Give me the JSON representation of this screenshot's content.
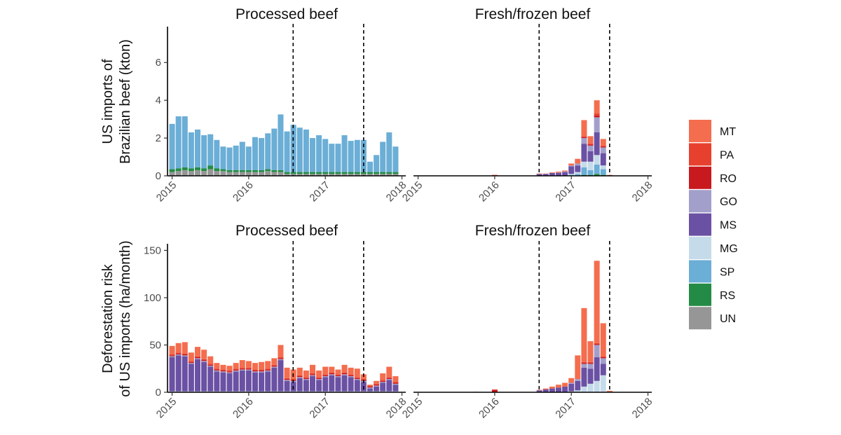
{
  "chart_data": [
    {
      "type": "bar",
      "stacked": true,
      "panel_title": "Processed beef",
      "ylabel": [
        "US imports of",
        "Brazilian beef (kton)"
      ],
      "yticks": [
        0,
        2,
        4,
        6
      ],
      "ylim": [
        0,
        7.9
      ],
      "xticks": [
        "2015",
        "2016",
        "2017",
        "2018"
      ],
      "xlim": [
        2014.94,
        2018.05
      ],
      "vlines": [
        2016.58,
        2017.5
      ],
      "stack_order": [
        "UN",
        "RS",
        "SP"
      ],
      "months": [
        "2015-01",
        "2015-02",
        "2015-03",
        "2015-04",
        "2015-05",
        "2015-06",
        "2015-07",
        "2015-08",
        "2015-09",
        "2015-10",
        "2015-11",
        "2015-12",
        "2016-01",
        "2016-02",
        "2016-03",
        "2016-04",
        "2016-05",
        "2016-06",
        "2016-07",
        "2016-08",
        "2016-09",
        "2016-10",
        "2016-11",
        "2016-12",
        "2017-01",
        "2017-02",
        "2017-03",
        "2017-04",
        "2017-05",
        "2017-06",
        "2017-07",
        "2017-08",
        "2017-09",
        "2017-10",
        "2017-11",
        "2017-12"
      ],
      "series": [
        {
          "name": "UN",
          "values": [
            0.2,
            0.25,
            0.3,
            0.25,
            0.3,
            0.25,
            0.35,
            0.25,
            0.25,
            0.2,
            0.2,
            0.2,
            0.2,
            0.2,
            0.2,
            0.25,
            0.2,
            0.2,
            0.1,
            0.1,
            0.1,
            0.1,
            0.1,
            0.1,
            0.1,
            0.1,
            0.1,
            0.1,
            0.1,
            0.1,
            0.1,
            0.1,
            0.1,
            0.1,
            0.1,
            0.1
          ]
        },
        {
          "name": "RS",
          "values": [
            0.15,
            0.15,
            0.15,
            0.15,
            0.15,
            0.15,
            0.2,
            0.15,
            0.1,
            0.1,
            0.1,
            0.1,
            0.1,
            0.1,
            0.1,
            0.1,
            0.1,
            0.1,
            0.1,
            0.1,
            0.1,
            0.1,
            0.1,
            0.1,
            0.1,
            0.1,
            0.1,
            0.1,
            0.1,
            0.1,
            0.1,
            0.1,
            0.1,
            0.1,
            0.1,
            0.1
          ]
        },
        {
          "name": "SP",
          "values": [
            2.4,
            2.75,
            2.7,
            1.9,
            2.0,
            1.75,
            1.65,
            1.5,
            1.2,
            1.2,
            1.3,
            1.5,
            1.25,
            1.75,
            1.7,
            1.9,
            2.2,
            2.95,
            2.15,
            2.5,
            2.35,
            2.25,
            1.8,
            1.95,
            1.75,
            1.5,
            1.5,
            1.95,
            1.65,
            1.7,
            1.7,
            0.55,
            0.9,
            1.6,
            2.1,
            1.35
          ]
        }
      ]
    },
    {
      "type": "bar",
      "stacked": true,
      "panel_title": "Fresh/frozen beef",
      "yticks": [
        0,
        2,
        4,
        6
      ],
      "ylim": [
        0,
        7.9
      ],
      "xticks": [
        "2015",
        "2016",
        "2017",
        "2018"
      ],
      "xlim": [
        2014.94,
        2018.05
      ],
      "vlines": [
        2016.58,
        2017.5
      ],
      "stack_order": [
        "UN",
        "RS",
        "SP",
        "MG",
        "MS",
        "GO",
        "RO",
        "PA",
        "MT"
      ],
      "months": [
        "2015-10",
        "2016-01",
        "2016-08",
        "2016-09",
        "2016-10",
        "2016-11",
        "2016-12",
        "2017-01",
        "2017-02",
        "2017-03",
        "2017-04",
        "2017-05",
        "2017-06",
        "2017-07"
      ],
      "series": [
        {
          "name": "UN",
          "values": [
            0,
            0,
            0,
            0,
            0,
            0,
            0,
            0,
            0,
            0,
            0,
            0,
            0,
            0
          ]
        },
        {
          "name": "RS",
          "values": [
            0,
            0,
            0,
            0,
            0,
            0,
            0,
            0,
            0,
            0.05,
            0.05,
            0.1,
            0.05,
            0
          ]
        },
        {
          "name": "SP",
          "values": [
            0,
            0,
            0,
            0,
            0,
            0,
            0,
            0.05,
            0.1,
            0.4,
            0.25,
            0.5,
            0.3,
            0
          ]
        },
        {
          "name": "MG",
          "values": [
            0,
            0,
            0,
            0,
            0,
            0,
            0,
            0.05,
            0.1,
            0.3,
            0.45,
            0.5,
            0.2,
            0
          ]
        },
        {
          "name": "MS",
          "values": [
            0,
            0,
            0.1,
            0.1,
            0.15,
            0.15,
            0.2,
            0.4,
            0.35,
            0.95,
            0.55,
            1.2,
            0.65,
            0.03
          ]
        },
        {
          "name": "GO",
          "values": [
            0,
            0,
            0,
            0,
            0,
            0.02,
            0.03,
            0.05,
            0.1,
            0.3,
            0.3,
            0.8,
            0.3,
            0
          ]
        },
        {
          "name": "RO",
          "values": [
            0,
            0.03,
            0,
            0,
            0,
            0,
            0,
            0,
            0,
            0.05,
            0.05,
            0.1,
            0.05,
            0
          ]
        },
        {
          "name": "PA",
          "values": [
            0,
            0.02,
            0,
            0,
            0,
            0,
            0,
            0,
            0,
            0.05,
            0.05,
            0.1,
            0.05,
            0
          ]
        },
        {
          "name": "MT",
          "values": [
            0.02,
            0,
            0.02,
            0.02,
            0.03,
            0.05,
            0.05,
            0.1,
            0.25,
            0.85,
            0.4,
            0.7,
            0.35,
            0.02
          ]
        }
      ]
    },
    {
      "type": "bar",
      "stacked": true,
      "panel_title": "Processed beef",
      "ylabel": [
        "Deforestation risk",
        "of US imports (ha/month)"
      ],
      "yticks": [
        0,
        50,
        100,
        150
      ],
      "ylim": [
        0,
        157
      ],
      "xticks": [
        "2015",
        "2016",
        "2017",
        "2018"
      ],
      "xlim": [
        2014.94,
        2018.05
      ],
      "vlines": [
        2016.58,
        2017.5
      ],
      "stack_order": [
        "UN",
        "RS",
        "SP",
        "MG",
        "MS",
        "GO",
        "RO",
        "PA",
        "MT"
      ],
      "months": [
        "2015-01",
        "2015-02",
        "2015-03",
        "2015-04",
        "2015-05",
        "2015-06",
        "2015-07",
        "2015-08",
        "2015-09",
        "2015-10",
        "2015-11",
        "2015-12",
        "2016-01",
        "2016-02",
        "2016-03",
        "2016-04",
        "2016-05",
        "2016-06",
        "2016-07",
        "2016-08",
        "2016-09",
        "2016-10",
        "2016-11",
        "2016-12",
        "2017-01",
        "2017-02",
        "2017-03",
        "2017-04",
        "2017-05",
        "2017-06",
        "2017-07",
        "2017-08",
        "2017-09",
        "2017-10",
        "2017-11",
        "2017-12"
      ],
      "series": [
        {
          "name": "UN",
          "values": [
            0,
            0,
            0,
            0,
            0,
            0,
            0,
            0,
            0,
            0,
            0,
            0,
            0,
            0,
            0,
            0,
            0,
            0,
            0,
            0,
            0,
            0,
            0,
            0,
            0,
            0,
            0,
            0,
            0,
            0,
            0,
            0,
            0,
            0,
            0,
            0
          ]
        },
        {
          "name": "RS",
          "values": [
            0,
            0,
            0,
            0,
            0,
            0,
            0,
            0,
            0,
            0,
            0,
            0,
            0,
            0,
            0,
            0,
            0,
            0,
            0,
            0,
            0,
            0,
            0,
            0,
            0,
            0,
            0,
            0,
            0,
            0,
            0,
            0,
            0,
            0,
            0,
            0
          ]
        },
        {
          "name": "SP",
          "values": [
            0.5,
            0.5,
            0.5,
            0.5,
            0.5,
            0.5,
            0.5,
            0.5,
            0.5,
            0.5,
            0.5,
            0.5,
            0.5,
            0.5,
            0.5,
            0.5,
            0.5,
            0.5,
            0.5,
            0.5,
            0.5,
            0.5,
            0.5,
            0.5,
            0.5,
            0.5,
            0.5,
            0.5,
            0.5,
            0.5,
            0.5,
            0.5,
            0.5,
            0.5,
            0.5,
            0.5
          ]
        },
        {
          "name": "MG",
          "values": [
            0.5,
            0.5,
            0.5,
            0.5,
            0.5,
            0.5,
            0.5,
            0.5,
            0.5,
            0.5,
            0.5,
            0.5,
            0.5,
            0.5,
            0.5,
            0.5,
            0.5,
            0.5,
            0.5,
            0.5,
            0.5,
            0.5,
            0.5,
            0.5,
            0.5,
            0.5,
            0.5,
            0.5,
            0.5,
            0.5,
            0.5,
            0.5,
            0.5,
            0.5,
            0.5,
            0.5
          ]
        },
        {
          "name": "MS",
          "values": [
            36,
            38,
            37,
            29,
            34,
            31,
            26,
            21,
            20,
            19,
            21,
            22,
            22,
            20,
            20,
            21,
            25,
            33,
            11,
            10,
            14,
            12,
            16,
            12,
            15,
            17,
            15,
            17,
            15,
            12,
            10,
            3,
            5,
            9,
            12,
            7
          ]
        },
        {
          "name": "GO",
          "values": [
            1,
            1,
            1,
            1,
            1,
            1,
            1,
            1,
            1,
            1,
            1,
            1,
            1,
            1,
            1,
            1,
            1,
            1,
            1,
            1,
            1,
            1,
            1,
            1,
            1,
            1,
            1,
            1,
            1,
            1,
            1,
            1,
            1,
            1,
            1,
            1
          ]
        },
        {
          "name": "RO",
          "values": [
            1,
            1,
            1,
            1,
            1,
            1,
            1,
            1,
            1,
            1,
            1,
            1,
            1,
            1,
            1,
            1,
            1,
            1,
            1,
            1,
            1,
            1,
            1,
            1,
            1,
            1,
            1,
            1,
            1,
            1,
            1,
            1,
            1,
            1,
            1,
            1
          ]
        },
        {
          "name": "PA",
          "values": [
            1,
            1,
            1,
            1,
            1,
            1,
            1,
            1,
            1,
            1,
            1,
            1,
            1,
            1,
            1,
            1,
            1,
            1,
            1,
            1,
            1,
            1,
            1,
            1,
            1,
            1,
            1,
            1,
            1,
            1,
            1,
            1,
            1,
            1,
            1,
            1
          ]
        },
        {
          "name": "MT",
          "values": [
            9,
            10,
            12,
            9,
            10,
            10,
            8,
            6,
            5,
            5,
            6,
            8,
            7,
            7,
            8,
            8,
            7,
            13,
            11,
            10,
            8,
            7,
            9,
            7,
            8,
            6,
            5,
            8,
            7,
            9,
            5,
            1,
            3,
            7,
            11,
            6
          ]
        }
      ]
    },
    {
      "type": "bar",
      "stacked": true,
      "panel_title": "Fresh/frozen beef",
      "yticks": [
        0,
        50,
        100,
        150
      ],
      "ylim": [
        0,
        157
      ],
      "xticks": [
        "2015",
        "2016",
        "2017",
        "2018"
      ],
      "xlim": [
        2014.94,
        2018.05
      ],
      "vlines": [
        2016.58,
        2017.5
      ],
      "stack_order": [
        "UN",
        "RS",
        "SP",
        "MG",
        "MS",
        "GO",
        "RO",
        "PA",
        "MT"
      ],
      "months": [
        "2015-10",
        "2016-01",
        "2016-08",
        "2016-09",
        "2016-10",
        "2016-11",
        "2016-12",
        "2017-01",
        "2017-02",
        "2017-03",
        "2017-04",
        "2017-05",
        "2017-06",
        "2017-07"
      ],
      "series": [
        {
          "name": "UN",
          "values": [
            0,
            0,
            0,
            0,
            0,
            0,
            0,
            0,
            0,
            0,
            0,
            0,
            0,
            0
          ]
        },
        {
          "name": "RS",
          "values": [
            0,
            0,
            0,
            0,
            0,
            0,
            0,
            0,
            0,
            0,
            0,
            0,
            0,
            0
          ]
        },
        {
          "name": "SP",
          "values": [
            0,
            0,
            0,
            0,
            0,
            0,
            0,
            0,
            0,
            0,
            0,
            0,
            0,
            0
          ]
        },
        {
          "name": "MG",
          "values": [
            0,
            0,
            0,
            0,
            0,
            0,
            0,
            1,
            2,
            6,
            9,
            12,
            18,
            0
          ]
        },
        {
          "name": "MS",
          "values": [
            0,
            0,
            2,
            3,
            4,
            5,
            6,
            8,
            10,
            20,
            16,
            25,
            12,
            0.5
          ]
        },
        {
          "name": "GO",
          "values": [
            0,
            0,
            0,
            0,
            0,
            0,
            0,
            1,
            2,
            4,
            5,
            13,
            6,
            0
          ]
        },
        {
          "name": "RO",
          "values": [
            0,
            2.5,
            0,
            0,
            0,
            0,
            0,
            0,
            0,
            1,
            1,
            1,
            1,
            0
          ]
        },
        {
          "name": "PA",
          "values": [
            0,
            0.5,
            0,
            0,
            0,
            0,
            0,
            0,
            0,
            1,
            1,
            1,
            1,
            0
          ]
        },
        {
          "name": "MT",
          "values": [
            0.5,
            0,
            0.5,
            1,
            2,
            3,
            4,
            5,
            25,
            57,
            22,
            87,
            35,
            1
          ]
        }
      ]
    }
  ],
  "legend": [
    {
      "label": "MT",
      "color": "#f46d4e"
    },
    {
      "label": "PA",
      "color": "#e8402e"
    },
    {
      "label": "RO",
      "color": "#c8191e"
    },
    {
      "label": "GO",
      "color": "#a39fcb"
    },
    {
      "label": "MS",
      "color": "#6a51a3"
    },
    {
      "label": "MG",
      "color": "#c6dbea"
    },
    {
      "label": "SP",
      "color": "#6baed6"
    },
    {
      "label": "RS",
      "color": "#238b45"
    },
    {
      "label": "UN",
      "color": "#969696"
    }
  ]
}
